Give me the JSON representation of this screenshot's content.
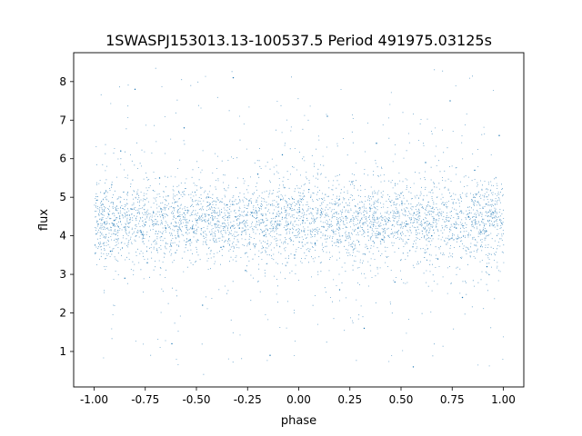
{
  "chart_data": {
    "type": "scatter",
    "title": "1SWASPJ153013.13-100537.5 Period 491975.03125s",
    "xlabel": "phase",
    "ylabel": "flux",
    "xlim": [
      -1.1,
      1.1
    ],
    "ylim": [
      0.08,
      8.75
    ],
    "xticks": [
      "-1.00",
      "-0.75",
      "-0.50",
      "-0.25",
      "0.00",
      "0.25",
      "0.50",
      "0.75",
      "1.00"
    ],
    "xtick_values": [
      -1,
      -0.75,
      -0.5,
      -0.25,
      0,
      0.25,
      0.5,
      0.75,
      1
    ],
    "yticks": [
      "1",
      "2",
      "3",
      "4",
      "5",
      "6",
      "7",
      "8"
    ],
    "ytick_values": [
      1,
      2,
      3,
      4,
      5,
      6,
      7,
      8
    ],
    "grid": false,
    "marker_color": "#1f77b4",
    "points": [
      [
        -0.98,
        4.3
      ],
      [
        -0.95,
        5.1
      ],
      [
        -0.92,
        3.6
      ],
      [
        -0.9,
        4.4
      ],
      [
        -0.87,
        6.2
      ],
      [
        -0.85,
        2.9
      ],
      [
        -0.82,
        4.7
      ],
      [
        -0.8,
        7.8
      ],
      [
        -0.77,
        4.1
      ],
      [
        -0.74,
        3.3
      ],
      [
        -0.71,
        4.6
      ],
      [
        -0.68,
        5.5
      ],
      [
        -0.65,
        4.2
      ],
      [
        -0.62,
        1.2
      ],
      [
        -0.59,
        4.5
      ],
      [
        -0.56,
        6.8
      ],
      [
        -0.53,
        3.9
      ],
      [
        -0.5,
        4.4
      ],
      [
        -0.47,
        2.2
      ],
      [
        -0.44,
        5.0
      ],
      [
        -0.41,
        4.3
      ],
      [
        -0.38,
        3.7
      ],
      [
        -0.35,
        4.8
      ],
      [
        -0.32,
        8.1
      ],
      [
        -0.29,
        4.2
      ],
      [
        -0.26,
        3.1
      ],
      [
        -0.23,
        4.6
      ],
      [
        -0.2,
        5.6
      ],
      [
        -0.17,
        4.0
      ],
      [
        -0.14,
        0.9
      ],
      [
        -0.11,
        4.5
      ],
      [
        -0.08,
        6.1
      ],
      [
        -0.05,
        4.3
      ],
      [
        -0.02,
        3.5
      ],
      [
        0.02,
        4.4
      ],
      [
        0.05,
        5.2
      ],
      [
        0.08,
        3.8
      ],
      [
        0.11,
        4.6
      ],
      [
        0.14,
        7.1
      ],
      [
        0.17,
        4.1
      ],
      [
        0.2,
        2.6
      ],
      [
        0.23,
        4.5
      ],
      [
        0.26,
        5.4
      ],
      [
        0.29,
        4.2
      ],
      [
        0.32,
        1.6
      ],
      [
        0.35,
        4.7
      ],
      [
        0.38,
        6.4
      ],
      [
        0.41,
        3.9
      ],
      [
        0.44,
        4.4
      ],
      [
        0.47,
        2.8
      ],
      [
        0.5,
        5.1
      ],
      [
        0.53,
        4.3
      ],
      [
        0.56,
        0.6
      ],
      [
        0.59,
        4.6
      ],
      [
        0.62,
        5.9
      ],
      [
        0.65,
        4.0
      ],
      [
        0.68,
        3.4
      ],
      [
        0.71,
        4.8
      ],
      [
        0.74,
        7.5
      ],
      [
        0.77,
        4.2
      ],
      [
        0.8,
        2.4
      ],
      [
        0.83,
        4.5
      ],
      [
        0.86,
        5.7
      ],
      [
        0.89,
        4.1
      ],
      [
        0.92,
        3.2
      ],
      [
        0.95,
        4.6
      ],
      [
        0.98,
        6.6
      ]
    ]
  }
}
